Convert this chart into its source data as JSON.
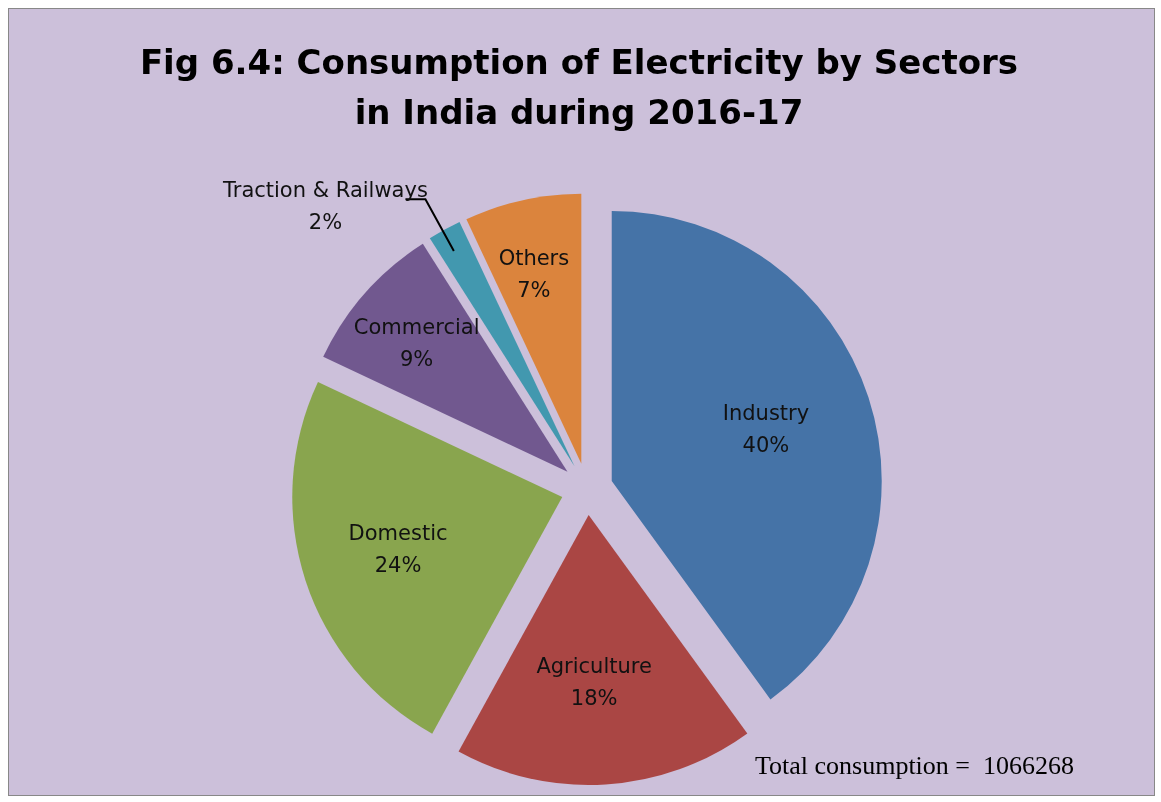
{
  "chart_data": {
    "type": "pie",
    "title": "Fig 6.4: Consumption of Electricity by Sectors in India during 2016-17",
    "categories": [
      "Industry",
      "Agriculture",
      "Domestic",
      "Commercial",
      "Traction & Railways",
      "Others"
    ],
    "values": [
      40,
      18,
      24,
      9,
      2,
      7
    ],
    "value_labels": [
      "40%",
      "18%",
      "24%",
      "9%",
      "2%",
      "7%"
    ],
    "colors": [
      "#4573a7",
      "#aa4644",
      "#89a54e",
      "#71588f",
      "#4298af",
      "#db843d"
    ],
    "annotations": [
      "Total consumption =  1066268"
    ]
  }
}
